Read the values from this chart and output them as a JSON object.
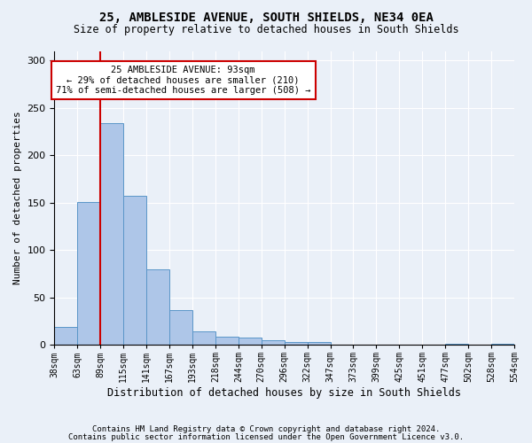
{
  "title1": "25, AMBLESIDE AVENUE, SOUTH SHIELDS, NE34 0EA",
  "title2": "Size of property relative to detached houses in South Shields",
  "xlabel": "Distribution of detached houses by size in South Shields",
  "ylabel": "Number of detached properties",
  "bar_values": [
    19,
    151,
    234,
    157,
    80,
    37,
    14,
    9,
    8,
    5,
    3,
    3,
    0,
    0,
    0,
    0,
    0,
    1,
    0,
    1
  ],
  "bin_labels": [
    "38sqm",
    "63sqm",
    "89sqm",
    "115sqm",
    "141sqm",
    "167sqm",
    "193sqm",
    "218sqm",
    "244sqm",
    "270sqm",
    "296sqm",
    "322sqm",
    "347sqm",
    "373sqm",
    "399sqm",
    "425sqm",
    "451sqm",
    "477sqm",
    "502sqm",
    "528sqm",
    "554sqm"
  ],
  "bar_color": "#aec6e8",
  "bar_edge_color": "#5a96c8",
  "property_line_bin": 2,
  "annotation_text": "25 AMBLESIDE AVENUE: 93sqm\n← 29% of detached houses are smaller (210)\n71% of semi-detached houses are larger (508) →",
  "annotation_box_color": "#ffffff",
  "annotation_box_edge": "#cc0000",
  "vline_color": "#cc0000",
  "ylim": [
    0,
    310
  ],
  "yticks": [
    0,
    50,
    100,
    150,
    200,
    250,
    300
  ],
  "footer1": "Contains HM Land Registry data © Crown copyright and database right 2024.",
  "footer2": "Contains public sector information licensed under the Open Government Licence v3.0.",
  "bg_color": "#eaf0f8",
  "plot_bg_color": "#eaf0f8"
}
